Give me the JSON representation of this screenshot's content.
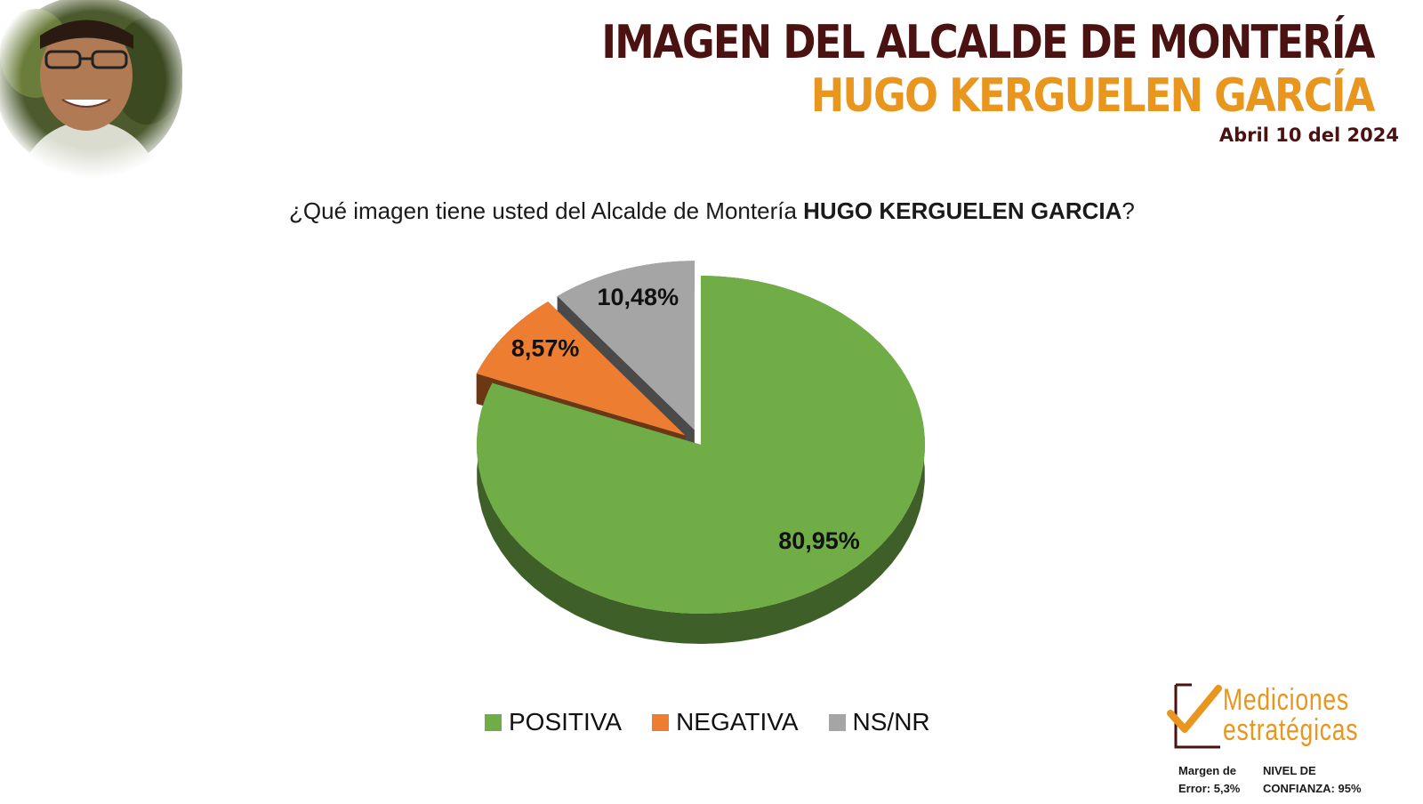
{
  "header": {
    "title_line1": "IMAGEN DEL ALCALDE DE MONTERÍA",
    "title_line2": "HUGO KERGUELEN GARCÍA",
    "date": "Abril 10 del 2024"
  },
  "question": {
    "prefix": "¿Qué imagen tiene usted del Alcalde de Montería ",
    "name": "HUGO KERGUELEN GARCIA",
    "suffix": "?"
  },
  "chart_data": {
    "type": "pie",
    "categories": [
      "POSITIVA",
      "NEGATIVA",
      "NS/NR"
    ],
    "values": [
      80.95,
      8.57,
      10.48
    ],
    "labels": [
      "80,95%",
      "8,57%",
      "10,48%"
    ],
    "colors": [
      "#70ad47",
      "#ed7d31",
      "#a5a5a5"
    ],
    "legend_position": "bottom",
    "style": "3d-exploded"
  },
  "branding": {
    "logo_line1": "Mediciones",
    "logo_line2": "estratégicas",
    "logo_color": "#e8961e"
  },
  "footnote": {
    "margin_line1": "Margen de",
    "margin_line2": "Error: 5,3%",
    "confidence_line1": "NIVEL DE",
    "confidence_line2": "CONFIANZA: 95%"
  }
}
